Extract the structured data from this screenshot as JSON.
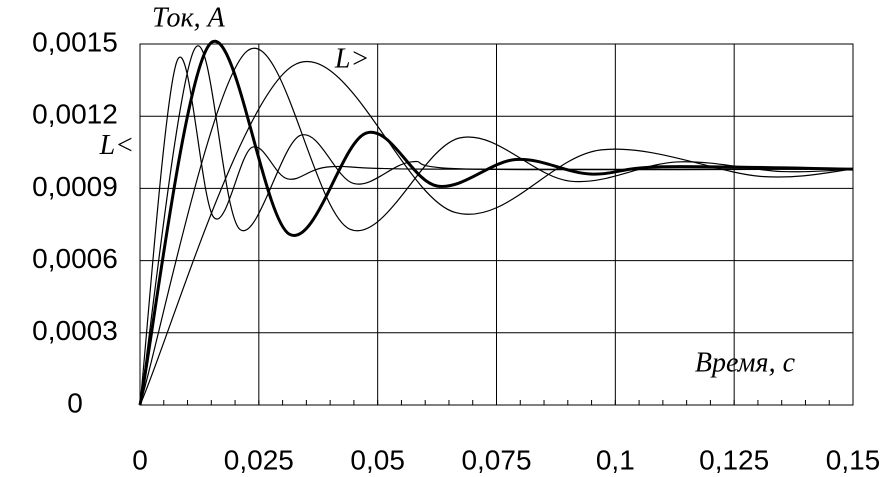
{
  "chart_data": {
    "type": "line",
    "y_label": "Ток, А",
    "x_label": "Время, с",
    "annotations": [
      {
        "text": "L>",
        "x": 0.041,
        "y": 0.00143
      },
      {
        "text": "L<",
        "x": -0.0085,
        "y": 0.00107
      }
    ],
    "xlim": [
      0,
      0.15
    ],
    "ylim": [
      0,
      0.0015
    ],
    "xticks": [
      0,
      {
        "value": 0.025,
        "label": "0,025"
      },
      {
        "value": 0.05,
        "label": "0,05"
      },
      {
        "value": 0.075,
        "label": "0,075"
      },
      {
        "value": 0.1,
        "label": "0,1"
      },
      {
        "value": 0.125,
        "label": "0,125"
      },
      {
        "value": 0.15,
        "label": "0,15"
      }
    ],
    "yticks": [
      0,
      {
        "value": 0.0003,
        "label": "0,0003"
      },
      {
        "value": 0.0006,
        "label": "0,0006"
      },
      {
        "value": 0.0009,
        "label": "0,0009"
      },
      {
        "value": 0.0012,
        "label": "0,0012"
      },
      {
        "value": 0.0015,
        "label": "0,0015"
      }
    ],
    "grid": true,
    "series": [
      {
        "color": "#000000",
        "line_width": 1.2,
        "x": [
          0,
          0.0078,
          0.0155,
          0.0235,
          0.031,
          0.04,
          0.06,
          0.15
        ],
        "values": [
          0,
          0.00143,
          0.00078,
          0.00107,
          0.00094,
          0.00099,
          0.00098,
          0.00098
        ]
      },
      {
        "color": "#000000",
        "line_width": 1.2,
        "x": [
          0,
          0.0115,
          0.021,
          0.0337,
          0.045,
          0.057,
          0.07,
          0.15
        ],
        "values": [
          0,
          0.00148,
          0.00073,
          0.00112,
          0.00092,
          0.00101,
          0.00098,
          0.00098
        ]
      },
      {
        "color": "#000000",
        "line_width": 3,
        "x": [
          0,
          0.0147,
          0.0314,
          0.0476,
          0.0625,
          0.079,
          0.0947,
          0.11,
          0.15
        ],
        "values": [
          0,
          0.0015,
          0.00071,
          0.00113,
          0.00091,
          0.00102,
          0.00096,
          0.00099,
          0.00098
        ]
      },
      {
        "color": "#000000",
        "line_width": 1.2,
        "x": [
          0,
          0.0225,
          0.0442,
          0.0673,
          0.0905,
          0.113,
          0.135,
          0.15
        ],
        "values": [
          0,
          0.00147,
          0.00073,
          0.00111,
          0.00093,
          0.00101,
          0.00097,
          0.00098
        ]
      },
      {
        "color": "#000000",
        "line_width": 1.2,
        "x": [
          0,
          0.0322,
          0.0663,
          0.097,
          0.1305,
          0.15
        ],
        "values": [
          0,
          0.00141,
          0.0008,
          0.00106,
          0.00095,
          0.00098
        ]
      }
    ]
  }
}
